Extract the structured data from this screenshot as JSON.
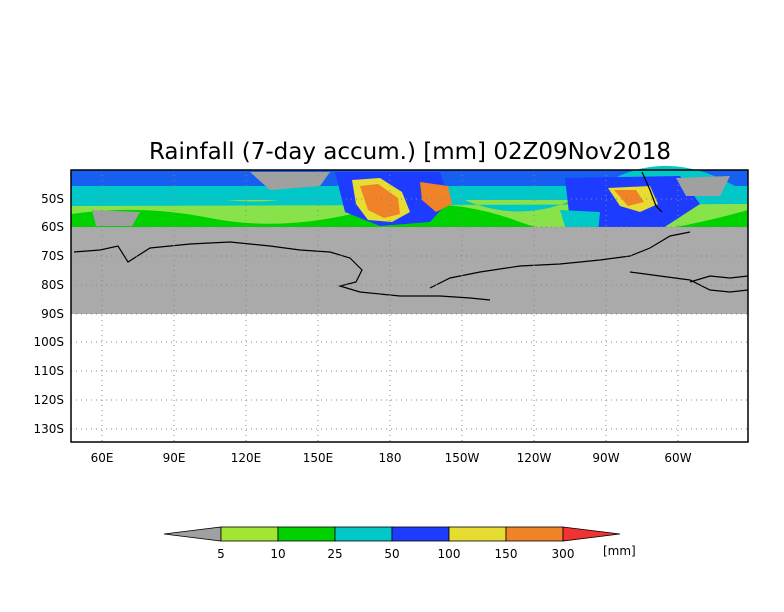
{
  "title": "Rainfall (7-day accum.) [mm] 02Z09Nov2018",
  "map": {
    "lat_labels": [
      "50S",
      "60S",
      "70S",
      "80S",
      "90S",
      "100S",
      "110S",
      "120S",
      "130S"
    ],
    "lon_labels": [
      "60E",
      "90E",
      "120E",
      "150E",
      "180",
      "150W",
      "120W",
      "90W",
      "60W"
    ],
    "land_mask_color": "#aaaaaa",
    "coastline_color": "#000000",
    "gridline_style": "dotted"
  },
  "colorbar": {
    "unit": "[mm]",
    "thresholds": [
      "5",
      "10",
      "25",
      "50",
      "100",
      "150",
      "300"
    ],
    "colors": [
      "#a0a0a0",
      "#a0e632",
      "#00d200",
      "#00c8c8",
      "#1e3cff",
      "#e6dc32",
      "#f08228",
      "#f03232"
    ]
  }
}
